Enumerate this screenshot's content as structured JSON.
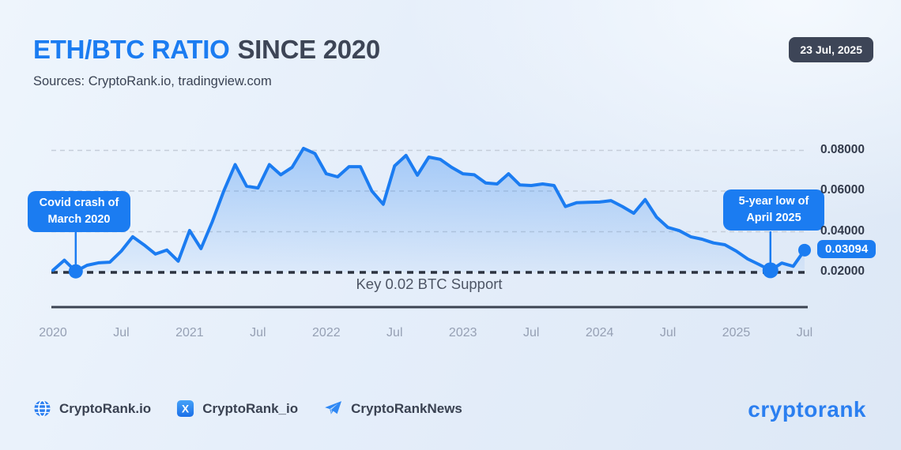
{
  "header": {
    "title_accent": "ETH/BTC RATIO",
    "title_rest": "SINCE 2020",
    "sources": "Sources: CryptoRank.io, tradingview.com",
    "date_badge": "23 Jul, 2025"
  },
  "chart_data": {
    "type": "area",
    "title": "ETH/BTC Ratio since 2020",
    "x_start": "Jan 2020",
    "x_end": "Jul 2025",
    "x_labels": [
      "2020",
      "Jul",
      "2021",
      "Jul",
      "2022",
      "Jul",
      "2023",
      "Jul",
      "2024",
      "Jul",
      "2025",
      "Jul"
    ],
    "x_label_months": [
      0,
      6,
      12,
      18,
      24,
      30,
      36,
      42,
      48,
      54,
      60,
      66
    ],
    "y_ticks": [
      0.02,
      0.04,
      0.06,
      0.08
    ],
    "y_tick_labels": [
      "0.02000",
      "0.04000",
      "0.06000",
      "0.08000"
    ],
    "ylim": [
      0.02,
      0.082
    ],
    "grid": true,
    "values": [
      0.021,
      0.026,
      0.0205,
      0.0235,
      0.0247,
      0.025,
      0.0305,
      0.0375,
      0.0335,
      0.029,
      0.031,
      0.0255,
      0.0406,
      0.0317,
      0.045,
      0.06,
      0.073,
      0.0624,
      0.0615,
      0.073,
      0.068,
      0.0717,
      0.081,
      0.0785,
      0.0685,
      0.067,
      0.072,
      0.072,
      0.06,
      0.0535,
      0.0724,
      0.0775,
      0.0678,
      0.0767,
      0.0756,
      0.0717,
      0.0685,
      0.068,
      0.064,
      0.0635,
      0.0685,
      0.063,
      0.0627,
      0.0635,
      0.0627,
      0.0524,
      0.0543,
      0.0545,
      0.0546,
      0.0553,
      0.0524,
      0.0491,
      0.0558,
      0.0472,
      0.0421,
      0.0405,
      0.0375,
      0.0363,
      0.0345,
      0.0336,
      0.0305,
      0.0266,
      0.0239,
      0.021,
      0.0246,
      0.023,
      0.03094
    ],
    "support": {
      "level": 0.02,
      "label": "Key 0.02 BTC Support"
    },
    "current": {
      "value": 0.03094,
      "label": "0.03094"
    },
    "annotations": [
      {
        "text": "Covid crash of March 2020",
        "month_index": 2,
        "point_value": 0.0205
      },
      {
        "text": "5-year low of April 2025",
        "month_index": 63,
        "point_value": 0.021
      }
    ],
    "markers": [
      {
        "name": "covid-crash-point",
        "month_index": 2
      },
      {
        "name": "five-year-low-point",
        "month_index": 63
      },
      {
        "name": "current-value-point",
        "month_index": 66
      }
    ]
  },
  "footer": {
    "links": [
      {
        "icon": "globe-icon",
        "label": "CryptoRank.io"
      },
      {
        "icon": "x-icon",
        "label": "CryptoRank_io"
      },
      {
        "icon": "telegram-icon",
        "label": "CryptoRankNews"
      }
    ],
    "logo": "cryptorank"
  },
  "colors": {
    "accent": "#1b7cf1",
    "title_dark": "#3d4556",
    "badge_bg": "#3d4557",
    "axis_label": "#96a0b4",
    "y_label": "#333b4c",
    "gridline": "#c5cdd9",
    "support_line": "#2c3340",
    "axis_line": "#3c4452"
  }
}
